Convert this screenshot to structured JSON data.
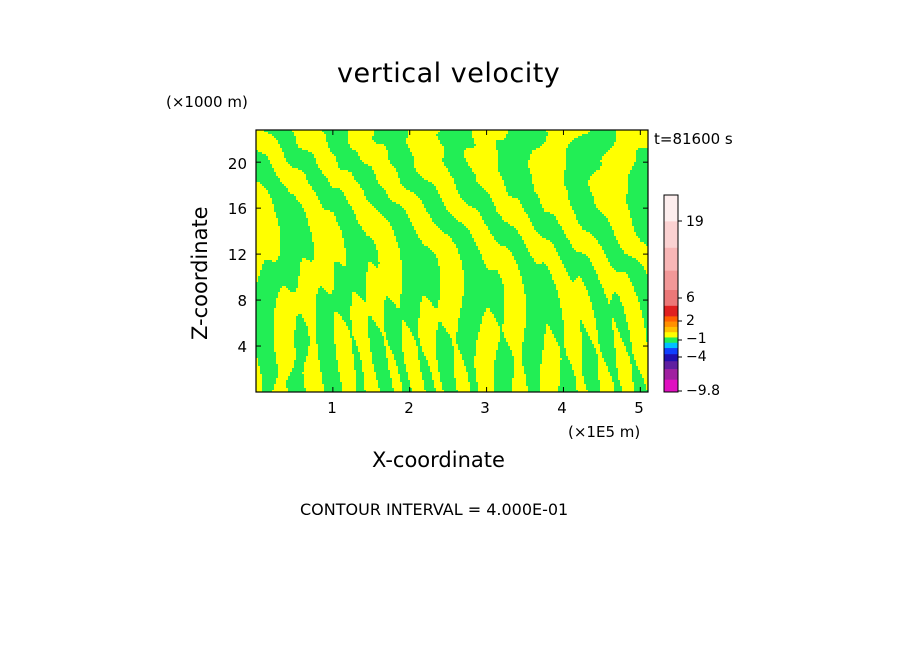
{
  "header": {
    "title": "vertical velocity",
    "z_multiplier": "(×1000 m)",
    "time_label": "t=81600 s"
  },
  "footer": {
    "x_multiplier": "(×1E5 m)",
    "contour_interval": "CONTOUR INTERVAL = 4.000E-01"
  },
  "chart_data": {
    "type": "heatmap",
    "title": "vertical velocity",
    "xlabel": "X-coordinate",
    "ylabel": "Z-coordinate",
    "x_multiplier": "(×1E5 m)",
    "y_multiplier": "(×1000 m)",
    "time": "t=81600 s",
    "contour_interval": 0.4,
    "xlim": [
      0,
      5.1
    ],
    "ylim": [
      0,
      22.8
    ],
    "x_ticks": [
      1,
      2,
      3,
      4,
      5
    ],
    "y_ticks": [
      4,
      8,
      12,
      16,
      20
    ],
    "x_tick_labels": [
      "1",
      "2",
      "3",
      "4",
      "5"
    ],
    "y_tick_labels": [
      "4",
      "8",
      "12",
      "16",
      "20"
    ],
    "field_colors": {
      "positive": "#ffff00",
      "negative": "#22ee55"
    },
    "colorbar": {
      "labels": [
        {
          "value": 19,
          "text": "19"
        },
        {
          "value": 6,
          "text": "6"
        },
        {
          "value": 2,
          "text": "2"
        },
        {
          "value": -1,
          "text": "−1"
        },
        {
          "value": -4,
          "text": "−4"
        },
        {
          "value": -9.8,
          "text": "−9.8"
        }
      ],
      "colors_top_to_bottom": [
        "#fdeeee",
        "#fbd2d2",
        "#f8b6b6",
        "#f29898",
        "#ec7878",
        "#e02020",
        "#ff6000",
        "#ff9000",
        "#ffc000",
        "#ffff00",
        "#22ee55",
        "#00c0ff",
        "#1040ff",
        "#2010b0",
        "#6020a0",
        "#a020a0",
        "#e010c0"
      ]
    }
  }
}
